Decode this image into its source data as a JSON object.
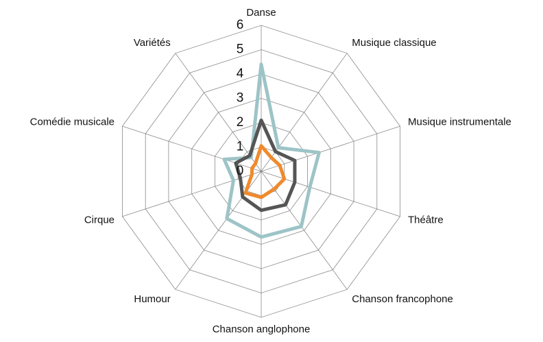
{
  "chart_data": {
    "type": "radar",
    "categories": [
      "Danse",
      "Musique classique",
      "Musique instrumentale",
      "Théâtre",
      "Chanson francophone",
      "Chanson anglophone",
      "Humour",
      "Cirque",
      "Comédie musicale",
      "Variétés"
    ],
    "series": [
      {
        "color": "#9dc4c7",
        "values": [
          4.4,
          1.2,
          2.5,
          2.1,
          2.8,
          2.7,
          2.4,
          1.2,
          1.6,
          0.7
        ]
      },
      {
        "color": "#555555",
        "values": [
          2.1,
          1.0,
          1.45,
          1.45,
          1.7,
          1.6,
          1.3,
          0.9,
          1.1,
          0.8
        ]
      },
      {
        "color": "#f08a2c",
        "values": [
          1.05,
          0.7,
          0.8,
          1.0,
          0.9,
          1.07,
          1.1,
          0.4,
          0.4,
          0.4
        ]
      }
    ],
    "rlim": [
      0,
      6
    ],
    "rticks": [
      0,
      1,
      2,
      3,
      4,
      5,
      6
    ],
    "grid": true
  }
}
